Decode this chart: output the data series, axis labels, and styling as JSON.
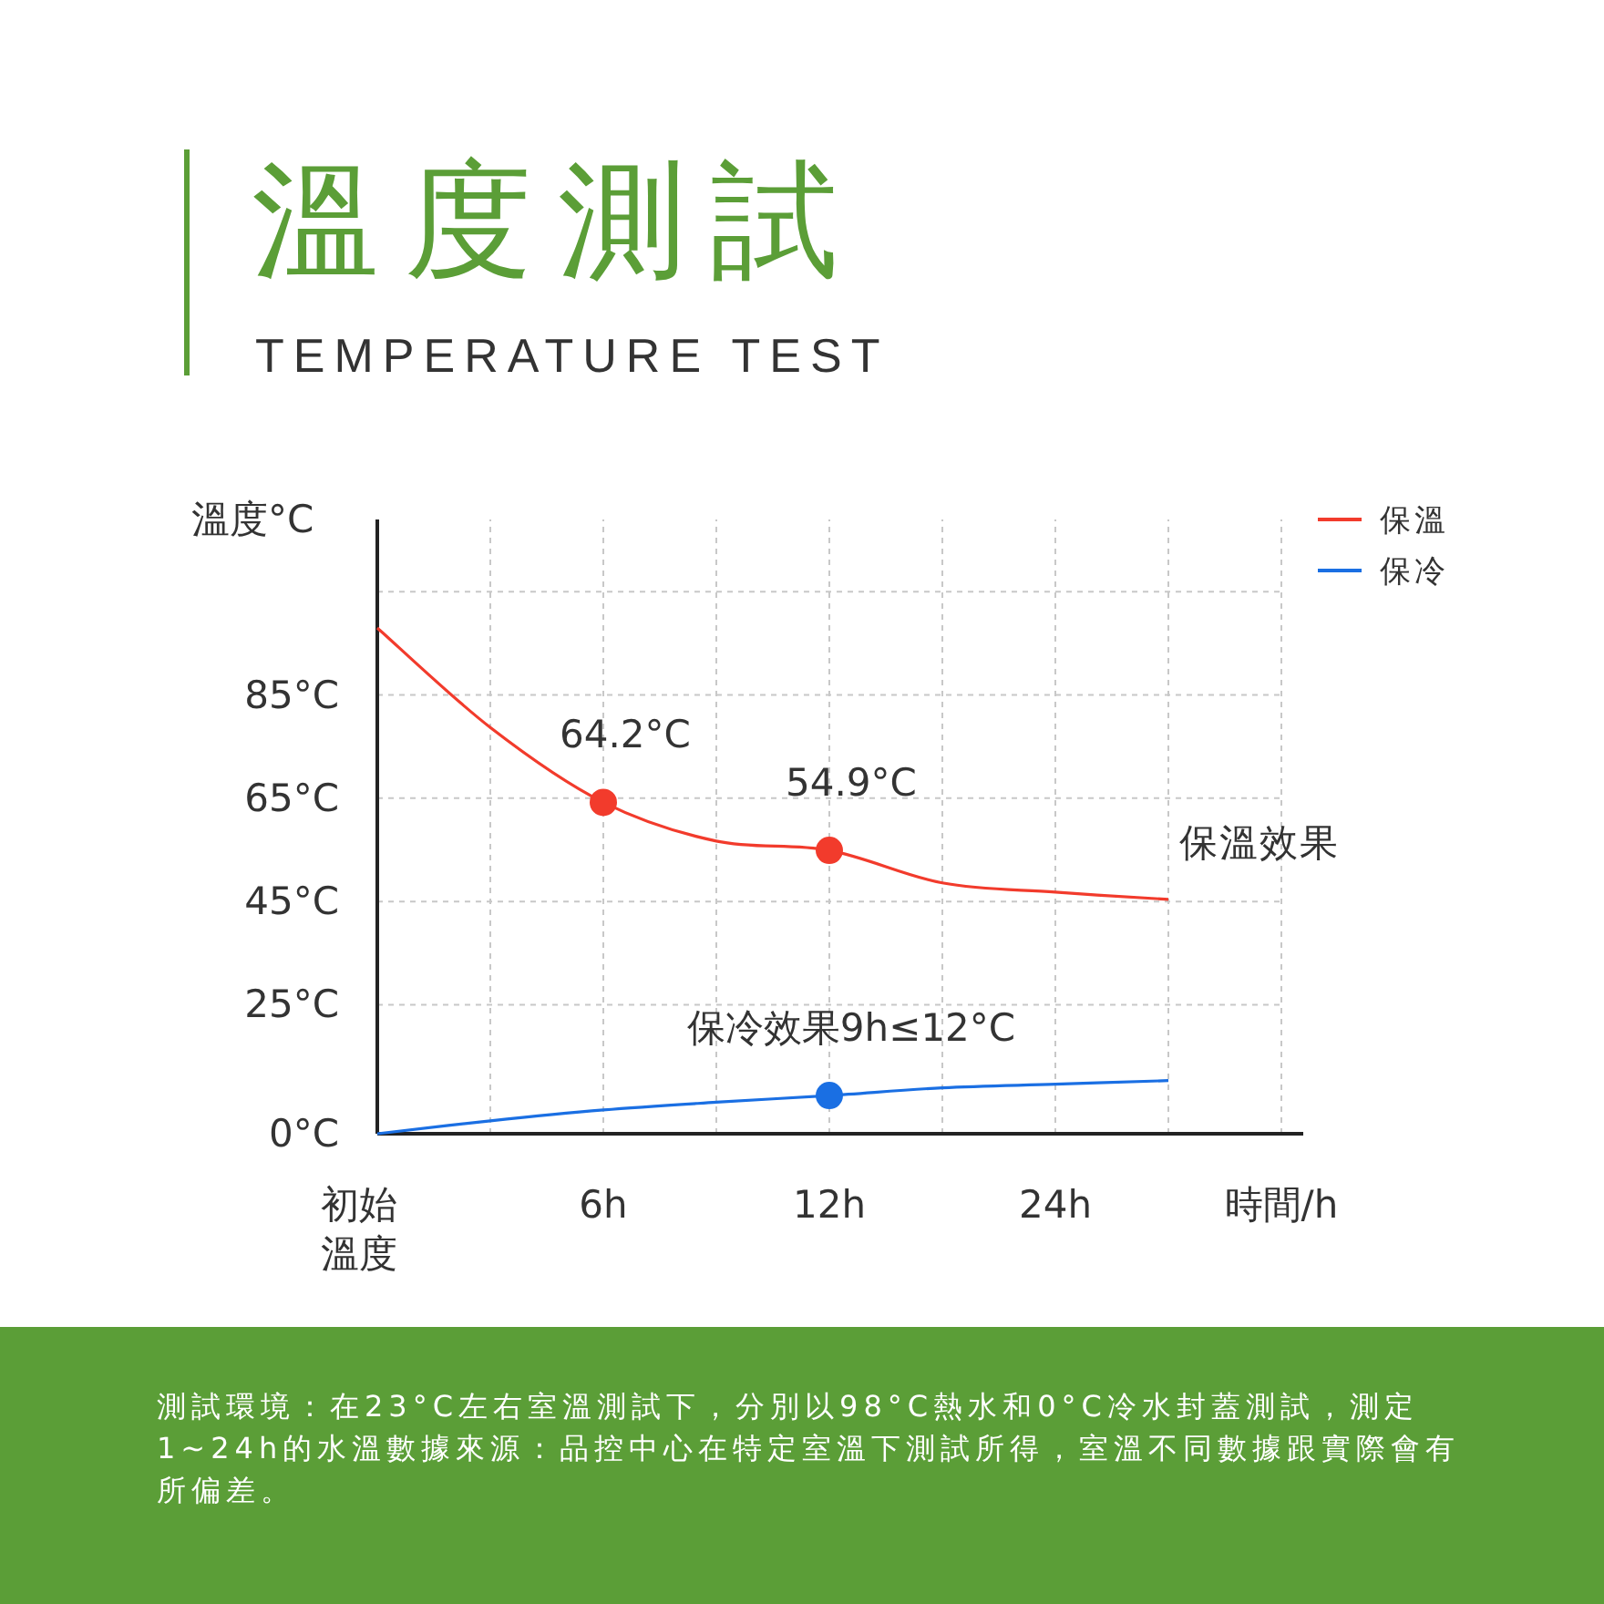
{
  "chart_data": {
    "type": "line",
    "title": "溫度測試",
    "subtitle": "TEMPERATURE TEST",
    "ylabel": "溫度°C",
    "xlabel": "時間/h",
    "categories": [
      "初始溫度",
      null,
      "6h",
      null,
      "12h",
      null,
      "24h",
      null,
      null
    ],
    "ylim": [
      0,
      119
    ],
    "yticks": [
      {
        "value": 0,
        "label": "0°C"
      },
      {
        "value": 25,
        "label": "25°C"
      },
      {
        "value": 45,
        "label": "45°C"
      },
      {
        "value": 65,
        "label": "65°C"
      },
      {
        "value": 85,
        "label": "85°C"
      },
      {
        "value": 105,
        "label": null
      }
    ],
    "grid": true,
    "legend": "top right",
    "line_style": "solid",
    "series": [
      {
        "name": "保溫",
        "color": "#f23b2c",
        "values": [
          98,
          78.7,
          64.2,
          56.7,
          54.9,
          48.6,
          46.8,
          45.4,
          null
        ]
      },
      {
        "name": "保冷",
        "color": "#1a6fe3",
        "values": [
          0,
          2.5,
          4.6,
          6.1,
          7.4,
          8.9,
          9.6,
          10.3,
          null
        ]
      },
      {
        "type": "scatter",
        "color": "#f23b2c",
        "marker": "circle",
        "values": [
          null,
          null,
          64.2,
          null,
          54.9,
          null,
          null,
          null,
          null
        ]
      },
      {
        "type": "scatter",
        "color": "#1a6fe3",
        "marker": "circle",
        "values": [
          null,
          null,
          null,
          null,
          7.4,
          null,
          null,
          null,
          null
        ]
      }
    ],
    "annotations": [
      {
        "text": "64.2°C",
        "x": "6h",
        "y": 64.2
      },
      {
        "text": "54.9°C",
        "x": "12h",
        "y": 54.9
      },
      "保溫效果",
      {
        "text": "保冷效果9h≤12°C",
        "x": "12h",
        "y": 7.4
      },
      "測試環境：在23°C左右室溫測試下，分別以98°C熱水和0°C冷水封蓋測試，測定1~24h的水溫數據來源：品控中心在特定室溫下測試所得，室溫不同數據跟實際會有所偏差。"
    ]
  }
}
